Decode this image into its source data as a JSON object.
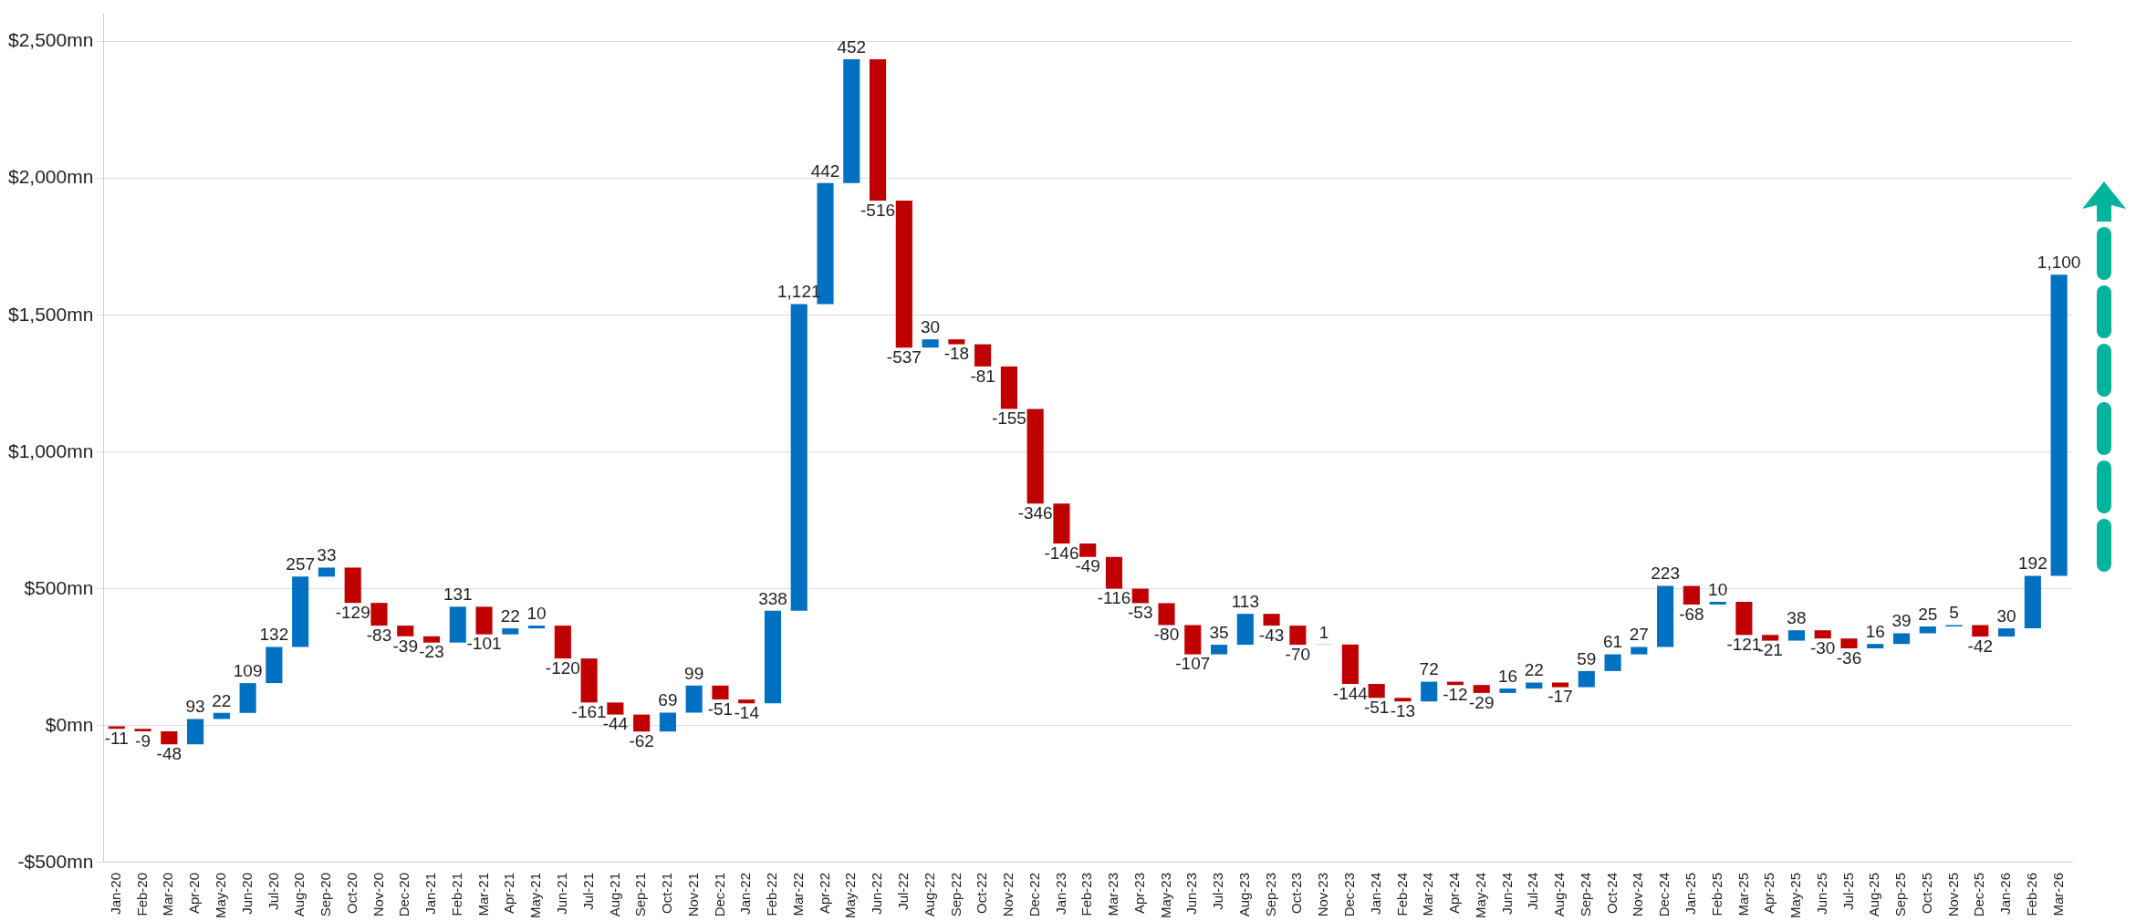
{
  "chart_data": {
    "type": "bar",
    "categories": [
      "Jan-20",
      "Feb-20",
      "Mar-20",
      "Apr-20",
      "May-20",
      "Jun-20",
      "Jul-20",
      "Aug-20",
      "Sep-20",
      "Oct-20",
      "Nov-20",
      "Dec-20",
      "Jan-21",
      "Feb-21",
      "Mar-21",
      "Apr-21",
      "May-21",
      "Jun-21",
      "Jul-21",
      "Aug-21",
      "Sep-21",
      "Oct-21",
      "Nov-21",
      "Dec-21",
      "Jan-22",
      "Feb-22",
      "Mar-22",
      "Apr-22",
      "May-22",
      "Jun-22",
      "Jul-22",
      "Aug-22",
      "Sep-22",
      "Oct-22",
      "Nov-22",
      "Dec-22",
      "Jan-23",
      "Feb-23",
      "Mar-23",
      "Apr-23",
      "May-23",
      "Jun-23",
      "Jul-23",
      "Aug-23",
      "Sep-23",
      "Oct-23",
      "Nov-23",
      "Dec-23",
      "Jan-24",
      "Feb-24",
      "Mar-24",
      "Apr-24",
      "May-24",
      "Jun-24",
      "Jul-24",
      "Aug-24",
      "Sep-24",
      "Oct-24",
      "Nov-24",
      "Dec-24",
      "Jan-25",
      "Feb-25",
      "Mar-25",
      "Apr-25",
      "May-25",
      "Jun-25",
      "Jul-25",
      "Aug-25",
      "Sep-25",
      "Oct-25",
      "Nov-25",
      "Dec-25",
      "Jan-26",
      "Feb-26",
      "Mar-26"
    ],
    "values": [
      -11,
      -9,
      -48,
      93,
      22,
      109,
      132,
      257,
      33,
      -129,
      -83,
      -39,
      -23,
      131,
      -101,
      22,
      10,
      -120,
      -161,
      -44,
      -62,
      69,
      99,
      -51,
      -14,
      338,
      1121,
      442,
      452,
      -516,
      -537,
      30,
      -18,
      -81,
      -155,
      -346,
      -146,
      -49,
      -116,
      -53,
      -80,
      -107,
      35,
      113,
      -43,
      -70,
      1,
      -144,
      -51,
      -13,
      72,
      -12,
      -29,
      16,
      22,
      -17,
      59,
      61,
      27,
      223,
      -68,
      10,
      -121,
      -21,
      38,
      -30,
      -36,
      16,
      39,
      25,
      5,
      -42,
      30,
      192,
      1100
    ],
    "base": [
      0,
      -11,
      -20,
      -68,
      25,
      47,
      156,
      288,
      545,
      578,
      449,
      366,
      327,
      304,
      435,
      334,
      356,
      366,
      246,
      85,
      41,
      -21,
      48,
      147,
      96,
      82,
      420,
      1541,
      1983,
      2435,
      1919,
      1382,
      1412,
      1394,
      1313,
      1158,
      812,
      666,
      617,
      501,
      448,
      368,
      261,
      296,
      409,
      366,
      296,
      297,
      153,
      102,
      89,
      161,
      149,
      120,
      136,
      158,
      141,
      200,
      261,
      288,
      511,
      443,
      453,
      332,
      311,
      349,
      319,
      283,
      299,
      338,
      363,
      368,
      326,
      356,
      548
    ],
    "colors": [
      "#c00000",
      "#c00000",
      "#c00000",
      "#0070c0",
      "#0070c0",
      "#0070c0",
      "#0070c0",
      "#0070c0",
      "#0070c0",
      "#c00000",
      "#c00000",
      "#c00000",
      "#c00000",
      "#0070c0",
      "#c00000",
      "#0070c0",
      "#0070c0",
      "#c00000",
      "#c00000",
      "#c00000",
      "#c00000",
      "#0070c0",
      "#0070c0",
      "#c00000",
      "#c00000",
      "#0070c0",
      "#0070c0",
      "#0070c0",
      "#0070c0",
      "#c00000",
      "#c00000",
      "#0070c0",
      "#c00000",
      "#c00000",
      "#c00000",
      "#c00000",
      "#c00000",
      "#c00000",
      "#c00000",
      "#c00000",
      "#c00000",
      "#c00000",
      "#0070c0",
      "#0070c0",
      "#c00000",
      "#c00000",
      "#0070c0",
      "#c00000",
      "#c00000",
      "#c00000",
      "#0070c0",
      "#c00000",
      "#c00000",
      "#0070c0",
      "#0070c0",
      "#c00000",
      "#0070c0",
      "#0070c0",
      "#0070c0",
      "#0070c0",
      "#c00000",
      "#0070c0",
      "#c00000",
      "#c00000",
      "#0070c0",
      "#c00000",
      "#c00000",
      "#0070c0",
      "#0070c0",
      "#0070c0",
      "#0070c0",
      "#c00000",
      "#0070c0",
      "#0070c0",
      "#0070c0"
    ],
    "ylim": [
      -500,
      2600
    ],
    "yticks": [
      {
        "value": -500,
        "label": "-$500mn"
      },
      {
        "value": 0,
        "label": "$0mn"
      },
      {
        "value": 500,
        "label": "$500mn"
      },
      {
        "value": 1000,
        "label": "$1,000mn"
      },
      {
        "value": 1500,
        "label": "$1,500mn"
      },
      {
        "value": 2000,
        "label": "$2,000mn"
      },
      {
        "value": 2500,
        "label": "$2,500mn"
      }
    ],
    "grid": "y",
    "legend": false,
    "value_labels": [
      "-11",
      "-9",
      "-48",
      "93",
      "22",
      "109",
      "132",
      "257",
      "33",
      "-129",
      "-83",
      "-39",
      "-23",
      "131",
      "-101",
      "22",
      "10",
      "-120",
      "-161",
      "-44",
      "-62",
      "69",
      "99",
      "-51",
      "-14",
      "338",
      "1,121",
      "442",
      "452",
      "-516",
      "-537",
      "30",
      "-18",
      "-81",
      "-155",
      "-346",
      "-146",
      "-49",
      "-116",
      "-53",
      "-80",
      "-107",
      "35",
      "113",
      "-43",
      "-70",
      "1",
      "-144",
      "-51",
      "-13",
      "72",
      "-12",
      "-29",
      "16",
      "22",
      "-17",
      "59",
      "61",
      "27",
      "223",
      "-68",
      "10",
      "-121",
      "-21",
      "38",
      "-30",
      "-36",
      "16",
      "39",
      "25",
      "5",
      "-42",
      "30",
      "192",
      "1,100"
    ]
  }
}
